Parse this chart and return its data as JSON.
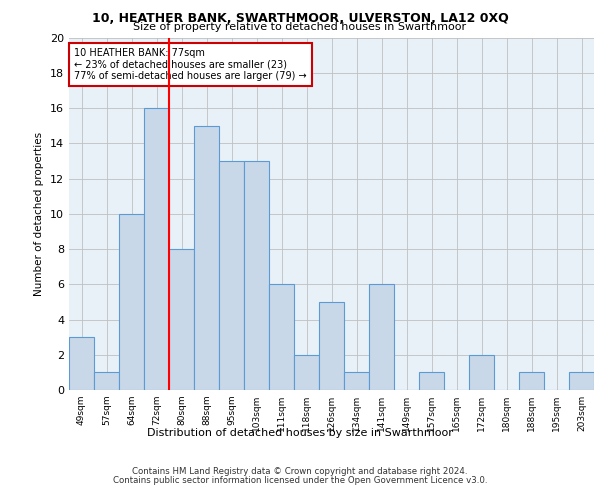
{
  "title": "10, HEATHER BANK, SWARTHMOOR, ULVERSTON, LA12 0XQ",
  "subtitle": "Size of property relative to detached houses in Swarthmoor",
  "xlabel": "Distribution of detached houses by size in Swarthmoor",
  "ylabel": "Number of detached properties",
  "categories": [
    "49sqm",
    "57sqm",
    "64sqm",
    "72sqm",
    "80sqm",
    "88sqm",
    "95sqm",
    "103sqm",
    "111sqm",
    "118sqm",
    "126sqm",
    "134sqm",
    "141sqm",
    "149sqm",
    "157sqm",
    "165sqm",
    "172sqm",
    "180sqm",
    "188sqm",
    "195sqm",
    "203sqm"
  ],
  "values": [
    3,
    1,
    10,
    16,
    8,
    15,
    13,
    13,
    6,
    2,
    5,
    1,
    6,
    0,
    1,
    0,
    2,
    0,
    1,
    0,
    1
  ],
  "bar_color": "#c8d8e8",
  "bar_edge_color": "#5b9bd5",
  "annotation_text": "10 HEATHER BANK: 77sqm\n← 23% of detached houses are smaller (23)\n77% of semi-detached houses are larger (79) →",
  "annotation_box_color": "#ffffff",
  "annotation_box_edge_color": "#cc0000",
  "ylim": [
    0,
    20
  ],
  "yticks": [
    0,
    2,
    4,
    6,
    8,
    10,
    12,
    14,
    16,
    18,
    20
  ],
  "grid_color": "#c0c0c0",
  "bg_color": "#e8f0f8",
  "footer_line1": "Contains HM Land Registry data © Crown copyright and database right 2024.",
  "footer_line2": "Contains public sector information licensed under the Open Government Licence v3.0."
}
